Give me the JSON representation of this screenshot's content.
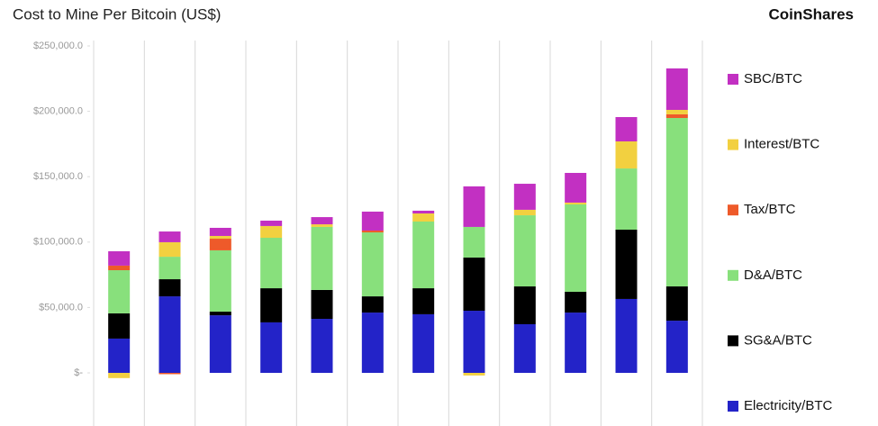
{
  "chart_data": {
    "type": "stacked-bar",
    "title": "Cost to Mine Per Bitcoin (US$)",
    "brand": "CoinShares",
    "categories": [
      null,
      null,
      null,
      null,
      null,
      null,
      null,
      null,
      null,
      null,
      null,
      null
    ],
    "series": [
      {
        "name": "Electricity/BTC",
        "color": "#2323c8",
        "values": [
          26200,
          58500,
          44000,
          38600,
          41300,
          46100,
          44800,
          47500,
          37200,
          46100,
          56500,
          39900
        ]
      },
      {
        "name": "SG&A/BTC",
        "color": "#000000",
        "values": [
          19300,
          13100,
          2800,
          26100,
          22100,
          12400,
          19900,
          40700,
          28900,
          15900,
          53000,
          26200
        ]
      },
      {
        "name": "D&A/BTC",
        "color": "#88e07c",
        "values": [
          33000,
          17200,
          46900,
          38600,
          48200,
          48900,
          51000,
          23400,
          54400,
          66800,
          46800,
          128800
        ]
      },
      {
        "name": "Tax/BTC",
        "color": "#ee5a2a",
        "values": [
          3500,
          -1000,
          8900,
          0,
          0,
          1400,
          0,
          0,
          0,
          0,
          0,
          2800
        ]
      },
      {
        "name": "Interest/BTC",
        "color": "#f2d040",
        "values": [
          -4000,
          11100,
          2100,
          9000,
          2000,
          0,
          6200,
          -2000,
          4200,
          1400,
          20700,
          3400
        ]
      },
      {
        "name": "SBC/BTC",
        "color": "#c230c2",
        "values": [
          11000,
          8200,
          6200,
          4100,
          5500,
          14500,
          2100,
          31000,
          19900,
          22700,
          18600,
          31700
        ]
      }
    ],
    "ylim": [
      0,
      250000
    ],
    "yticks": [
      {
        "value": 0,
        "label": "$-"
      },
      {
        "value": 50000,
        "label": "$50,000.0"
      },
      {
        "value": 100000,
        "label": "$100,000.0"
      },
      {
        "value": 150000,
        "label": "$150,000.0"
      },
      {
        "value": 200000,
        "label": "$200,000.0"
      },
      {
        "value": 250000,
        "label": "$250,000.0"
      }
    ],
    "legend": "right"
  }
}
